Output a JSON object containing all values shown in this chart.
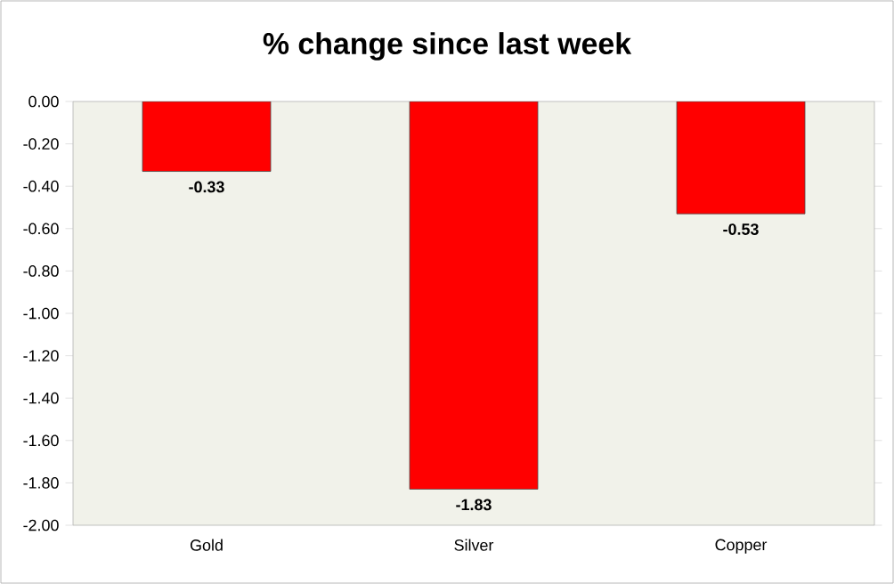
{
  "chart_data": {
    "type": "bar",
    "title": "% change since last week",
    "categories": [
      "Gold",
      "Silver",
      "Copper"
    ],
    "values": [
      -0.33,
      -1.83,
      -0.53
    ],
    "color": "#ff0000",
    "data_labels": true,
    "ylim": [
      -2.0,
      0.0
    ],
    "yticks": [
      {
        "value": -2.0,
        "label": "-2.00"
      },
      {
        "value": -1.8,
        "label": "-1.80"
      },
      {
        "value": -1.6,
        "label": "-1.60"
      },
      {
        "value": -1.4,
        "label": "-1.40"
      },
      {
        "value": -1.2,
        "label": "-1.20"
      },
      {
        "value": -1.0,
        "label": "-1.00"
      },
      {
        "value": -0.8,
        "label": "-0.80"
      },
      {
        "value": -0.6,
        "label": "-0.60"
      },
      {
        "value": -0.4,
        "label": "-0.40"
      },
      {
        "value": -0.2,
        "label": "-0.20"
      },
      {
        "value": 0.0,
        "label": "0.00"
      }
    ]
  }
}
